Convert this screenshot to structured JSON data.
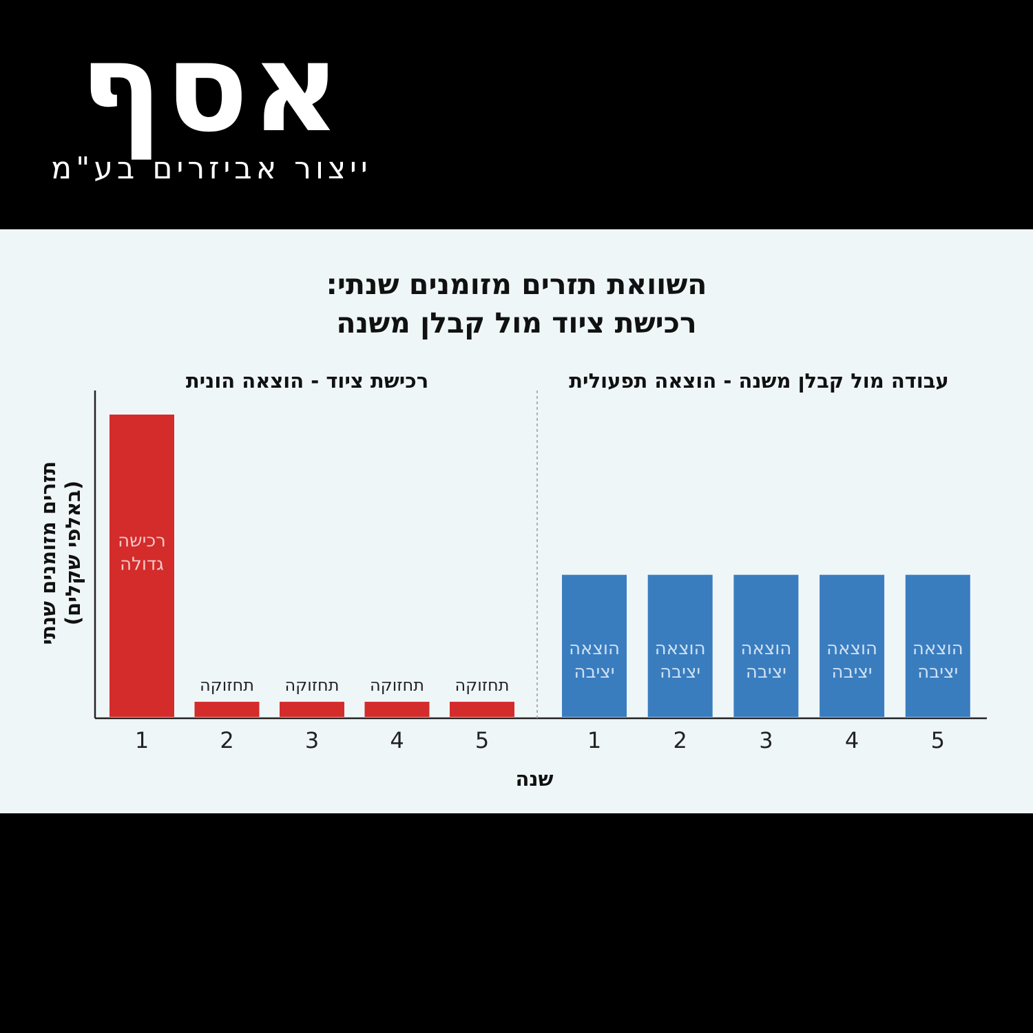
{
  "logo": {
    "mark": "אסף",
    "tagline": "ייצור אביזרים בע\"מ"
  },
  "colors": {
    "background": "#000000",
    "panel": "#eff6f8",
    "capex": "#d42b2b",
    "opex": "#3a7dbf",
    "capex_label": "#f4c9c9",
    "opex_label": "#cfe1f3"
  },
  "chart_data": {
    "type": "bar",
    "title_lines": [
      "השוואת תזרים מזומנים שנתי:",
      "רכישת ציוד מול קבלן משנה"
    ],
    "xlabel": "שנה",
    "ylabel_lines": [
      "תזרים מזומנים שנתי",
      "(באלפי שקלים)"
    ],
    "ylim": [
      0,
      100
    ],
    "panels": [
      {
        "title": "רכישת ציוד - הוצאה הונית",
        "categories": [
          "1",
          "2",
          "3",
          "4",
          "5"
        ],
        "values": [
          100,
          5,
          5,
          5,
          5
        ],
        "color": "#d42b2b",
        "bar_labels": [
          "רכישה גדולה",
          "תחזוקה",
          "תחזוקה",
          "תחזוקה",
          "תחזוקה"
        ]
      },
      {
        "title": "עבודה מול קבלן משנה - הוצאה תפעולית",
        "categories": [
          "1",
          "2",
          "3",
          "4",
          "5"
        ],
        "values": [
          47,
          47,
          47,
          47,
          47
        ],
        "color": "#3a7dbf",
        "bar_labels": [
          "הוצאה יציבה",
          "הוצאה יציבה",
          "הוצאה יציבה",
          "הוצאה יציבה",
          "הוצאה יציבה"
        ]
      }
    ]
  }
}
